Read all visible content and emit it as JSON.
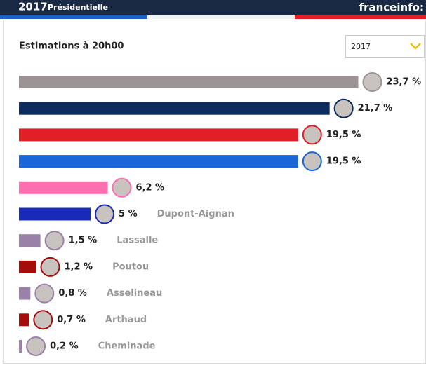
{
  "header": {
    "year": "2017",
    "title": "Présidentielle",
    "brand": "franceinfo:"
  },
  "chart_data": {
    "type": "bar",
    "orientation": "horizontal",
    "title": "Estimations à 20h00",
    "selector": "2017",
    "categories": [
      null,
      null,
      null,
      null,
      null,
      "Dupont-Aignan",
      "Lassalle",
      "Poutou",
      "Asselineau",
      "Arthaud",
      "Cheminade"
    ],
    "values": [
      23.7,
      21.7,
      19.5,
      19.5,
      6.2,
      5,
      1.5,
      1.2,
      0.8,
      0.7,
      0.2
    ],
    "value_labels": [
      "23,7 %",
      "21,7 %",
      "19,5 %",
      "19,5 %",
      "6,2 %",
      "5 %",
      "1,5 %",
      "1,2 %",
      "0,8 %",
      "0,7 %",
      "0,2 %"
    ],
    "colors": [
      "#9c9393",
      "#0d2d5e",
      "#e01f26",
      "#1a66d6",
      "#ff6fb0",
      "#1a2ab8",
      "#9b80a8",
      "#a50d0d",
      "#9b80a8",
      "#a50d0d",
      "#9b80a8"
    ]
  }
}
